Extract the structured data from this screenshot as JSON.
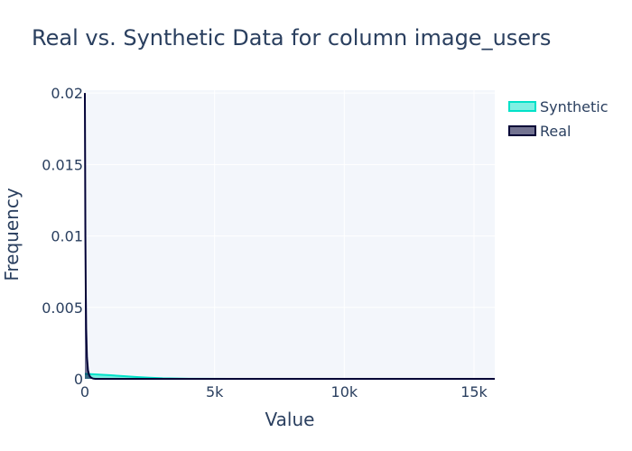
{
  "chart_data": {
    "type": "area",
    "title": "Real vs. Synthetic Data for column image_users",
    "xlabel": "Value",
    "ylabel": "Frequency",
    "xlim": [
      0,
      15800
    ],
    "ylim": [
      0,
      0.0202
    ],
    "x_ticks": [
      {
        "value": 0,
        "label": "0"
      },
      {
        "value": 5000,
        "label": "5k"
      },
      {
        "value": 10000,
        "label": "10k"
      },
      {
        "value": 15000,
        "label": "15k"
      }
    ],
    "y_ticks": [
      {
        "value": 0,
        "label": "0"
      },
      {
        "value": 0.005,
        "label": "0.005"
      },
      {
        "value": 0.01,
        "label": "0.01"
      },
      {
        "value": 0.015,
        "label": "0.015"
      },
      {
        "value": 0.02,
        "label": "0.02"
      }
    ],
    "grid": true,
    "legend_position": "top-right",
    "series": [
      {
        "name": "Synthetic",
        "color": "#00e1c8",
        "fill": "rgba(0,225,200,0.5)",
        "x": [
          0,
          100,
          300,
          600,
          1000,
          1500,
          2000,
          2500,
          3000,
          4000,
          6000,
          8000,
          10000,
          12000,
          14000,
          15800
        ],
        "y": [
          0.00035,
          0.00034,
          0.00032,
          0.00029,
          0.00025,
          0.00019,
          0.00013,
          8e-05,
          4e-05,
          1e-05,
          0.0,
          0.0,
          0.0,
          0.0,
          0.0,
          0.0
        ]
      },
      {
        "name": "Real",
        "color": "#000036",
        "fill": "rgba(0,0,54,0.55)",
        "x": [
          0,
          10,
          20,
          35,
          50,
          80,
          120,
          160,
          200,
          260,
          320,
          400,
          600,
          1000,
          15800
        ],
        "y": [
          0.02,
          0.015,
          0.01,
          0.006,
          0.0035,
          0.0015,
          0.0006,
          0.0003,
          0.00015,
          6e-05,
          2e-05,
          0.0,
          0.0,
          0.0,
          0.0
        ]
      }
    ]
  }
}
